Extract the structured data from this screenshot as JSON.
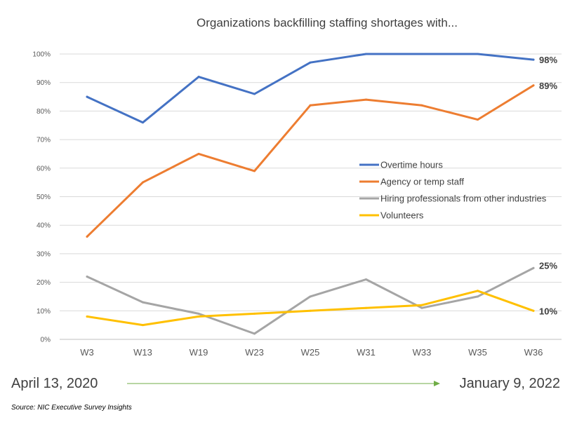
{
  "chart_data": {
    "type": "line",
    "title": "Organizations backfilling staffing shortages with...",
    "categories": [
      "W3",
      "W13",
      "W19",
      "W23",
      "W25",
      "W31",
      "W33",
      "W35",
      "W36"
    ],
    "y_ticks": [
      "0%",
      "10%",
      "20%",
      "30%",
      "40%",
      "50%",
      "60%",
      "70%",
      "80%",
      "90%",
      "100%"
    ],
    "ylim": [
      0,
      100
    ],
    "y_unit": "%",
    "grid": true,
    "legend_position": "center-right",
    "series": [
      {
        "name": "Overtime hours",
        "color": "#4472C4",
        "values": [
          85,
          76,
          92,
          86,
          97,
          100,
          100,
          100,
          98
        ],
        "end_label": "98%"
      },
      {
        "name": "Agency or temp staff",
        "color": "#ED7D31",
        "values": [
          36,
          55,
          65,
          59,
          82,
          84,
          82,
          77,
          89
        ],
        "end_label": "89%"
      },
      {
        "name": "Hiring professionals from other industries",
        "color": "#A5A5A5",
        "values": [
          22,
          13,
          9,
          2,
          15,
          21,
          11,
          15,
          25
        ],
        "end_label": "25%"
      },
      {
        "name": "Volunteers",
        "color": "#FFC000",
        "values": [
          8,
          5,
          8,
          9,
          10,
          11,
          12,
          17,
          10
        ],
        "end_label": "10%"
      }
    ]
  },
  "timeline": {
    "start_label": "April 13, 2020",
    "end_label": "January 9, 2022",
    "arrow_color": "#70AD47"
  },
  "source": "Source: NIC Executive Survey Insights"
}
